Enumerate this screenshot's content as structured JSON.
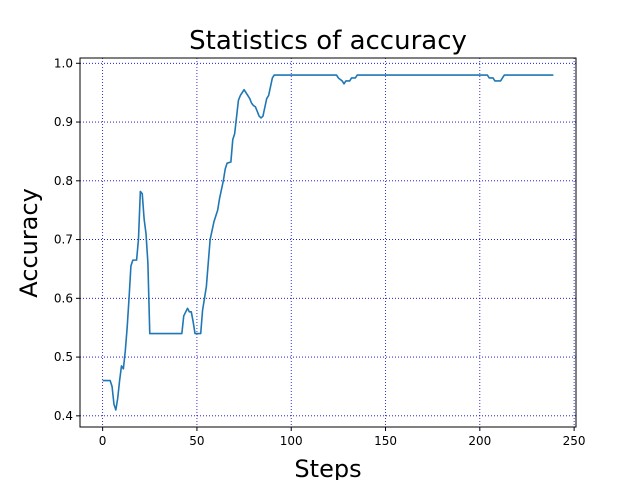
{
  "colors": {
    "line": "#1f77b4",
    "grid": "#0000cc",
    "axes": "#000000"
  },
  "chart_data": {
    "type": "line",
    "title": "Statistics of accuracy",
    "xlabel": "Steps",
    "ylabel": "Accuracy",
    "xlim": [
      -12,
      251
    ],
    "ylim": [
      0.381,
      1.009
    ],
    "xticks": [
      0,
      50,
      100,
      150,
      200,
      250
    ],
    "yticks": [
      0.4,
      0.5,
      0.6,
      0.7,
      0.8,
      0.9,
      1.0
    ],
    "xtick_labels": [
      "0",
      "50",
      "100",
      "150",
      "200",
      "250"
    ],
    "ytick_labels": [
      "0.4",
      "0.5",
      "0.6",
      "0.7",
      "0.8",
      "0.9",
      "1.0"
    ],
    "grid": true,
    "grid_style": "dotted",
    "legend": "none",
    "series": [
      {
        "color": "#1f77b4",
        "points": [
          [
            0,
            0.46
          ],
          [
            4,
            0.46
          ],
          [
            5,
            0.45
          ],
          [
            6,
            0.42
          ],
          [
            7,
            0.41
          ],
          [
            8,
            0.43
          ],
          [
            9,
            0.46
          ],
          [
            10,
            0.485
          ],
          [
            11,
            0.48
          ],
          [
            12,
            0.51
          ],
          [
            13,
            0.55
          ],
          [
            14,
            0.6
          ],
          [
            15,
            0.655
          ],
          [
            16,
            0.665
          ],
          [
            18,
            0.665
          ],
          [
            19,
            0.7
          ],
          [
            20,
            0.782
          ],
          [
            21,
            0.778
          ],
          [
            22,
            0.735
          ],
          [
            23,
            0.71
          ],
          [
            24,
            0.66
          ],
          [
            25,
            0.54
          ],
          [
            42,
            0.54
          ],
          [
            43,
            0.57
          ],
          [
            45,
            0.583
          ],
          [
            46,
            0.577
          ],
          [
            47,
            0.577
          ],
          [
            48,
            0.56
          ],
          [
            49,
            0.54
          ],
          [
            52,
            0.54
          ],
          [
            53,
            0.58
          ],
          [
            55,
            0.62
          ],
          [
            56,
            0.66
          ],
          [
            57,
            0.7
          ],
          [
            59,
            0.73
          ],
          [
            61,
            0.75
          ],
          [
            62,
            0.77
          ],
          [
            63,
            0.785
          ],
          [
            64,
            0.8
          ],
          [
            65,
            0.82
          ],
          [
            66,
            0.83
          ],
          [
            68,
            0.832
          ],
          [
            69,
            0.87
          ],
          [
            70,
            0.88
          ],
          [
            72,
            0.937
          ],
          [
            73,
            0.945
          ],
          [
            75,
            0.955
          ],
          [
            77,
            0.945
          ],
          [
            78,
            0.94
          ],
          [
            79,
            0.932
          ],
          [
            80,
            0.928
          ],
          [
            81,
            0.926
          ],
          [
            82,
            0.918
          ],
          [
            83,
            0.91
          ],
          [
            84,
            0.907
          ],
          [
            85,
            0.91
          ],
          [
            86,
            0.925
          ],
          [
            87,
            0.94
          ],
          [
            88,
            0.945
          ],
          [
            89,
            0.96
          ],
          [
            90,
            0.975
          ],
          [
            91,
            0.98
          ],
          [
            124,
            0.98
          ],
          [
            125,
            0.975
          ],
          [
            127,
            0.97
          ],
          [
            128,
            0.965
          ],
          [
            129,
            0.97
          ],
          [
            131,
            0.97
          ],
          [
            132,
            0.975
          ],
          [
            134,
            0.975
          ],
          [
            135,
            0.98
          ],
          [
            204,
            0.98
          ],
          [
            205,
            0.975
          ],
          [
            207,
            0.975
          ],
          [
            208,
            0.97
          ],
          [
            211,
            0.97
          ],
          [
            212,
            0.975
          ],
          [
            213,
            0.98
          ],
          [
            239,
            0.98
          ]
        ]
      }
    ]
  }
}
